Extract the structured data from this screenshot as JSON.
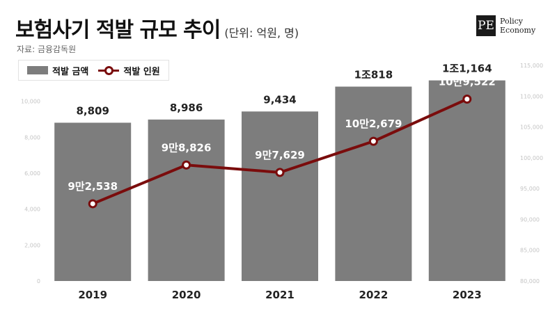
{
  "header": {
    "title": "보험사기 적발 규모 추이",
    "unit": "(단위: 억원, 명)",
    "source": "자료: 금융감독원"
  },
  "logo": {
    "mark": "PE",
    "line1": "Policy",
    "line2": "Economy"
  },
  "colors": {
    "bar": "#7d7d7d",
    "line": "#7a0c0c",
    "marker_fill": "#ffffff",
    "axis_text": "#c4c4c4"
  },
  "chart_data": {
    "type": "bar",
    "categories": [
      "2019",
      "2020",
      "2021",
      "2022",
      "2023"
    ],
    "series": [
      {
        "name": "적발 금액",
        "type": "bar",
        "axis": "left",
        "values": [
          8809,
          8986,
          9434,
          10818,
          11164
        ],
        "labels": [
          "8,809",
          "8,986",
          "9,434",
          "1조818",
          "1조1,164"
        ]
      },
      {
        "name": "적발 인원",
        "type": "line",
        "axis": "right",
        "values": [
          92538,
          98826,
          97629,
          102679,
          109522
        ],
        "labels": [
          "9만2,538",
          "9만8,826",
          "9만7,629",
          "10만2,679",
          "10만9,522"
        ]
      }
    ],
    "y_left": {
      "min": 0,
      "max": 12000,
      "ticks": [
        "0",
        "2,000",
        "4,000",
        "6,000",
        "8,000",
        "10,000"
      ]
    },
    "y_right": {
      "min": 80000,
      "max": 115000,
      "ticks": [
        "80,000",
        "85,000",
        "90,000",
        "95,000",
        "100,000",
        "105,000",
        "110,000",
        "115,000"
      ]
    },
    "grid": false,
    "legend": "top-left"
  }
}
